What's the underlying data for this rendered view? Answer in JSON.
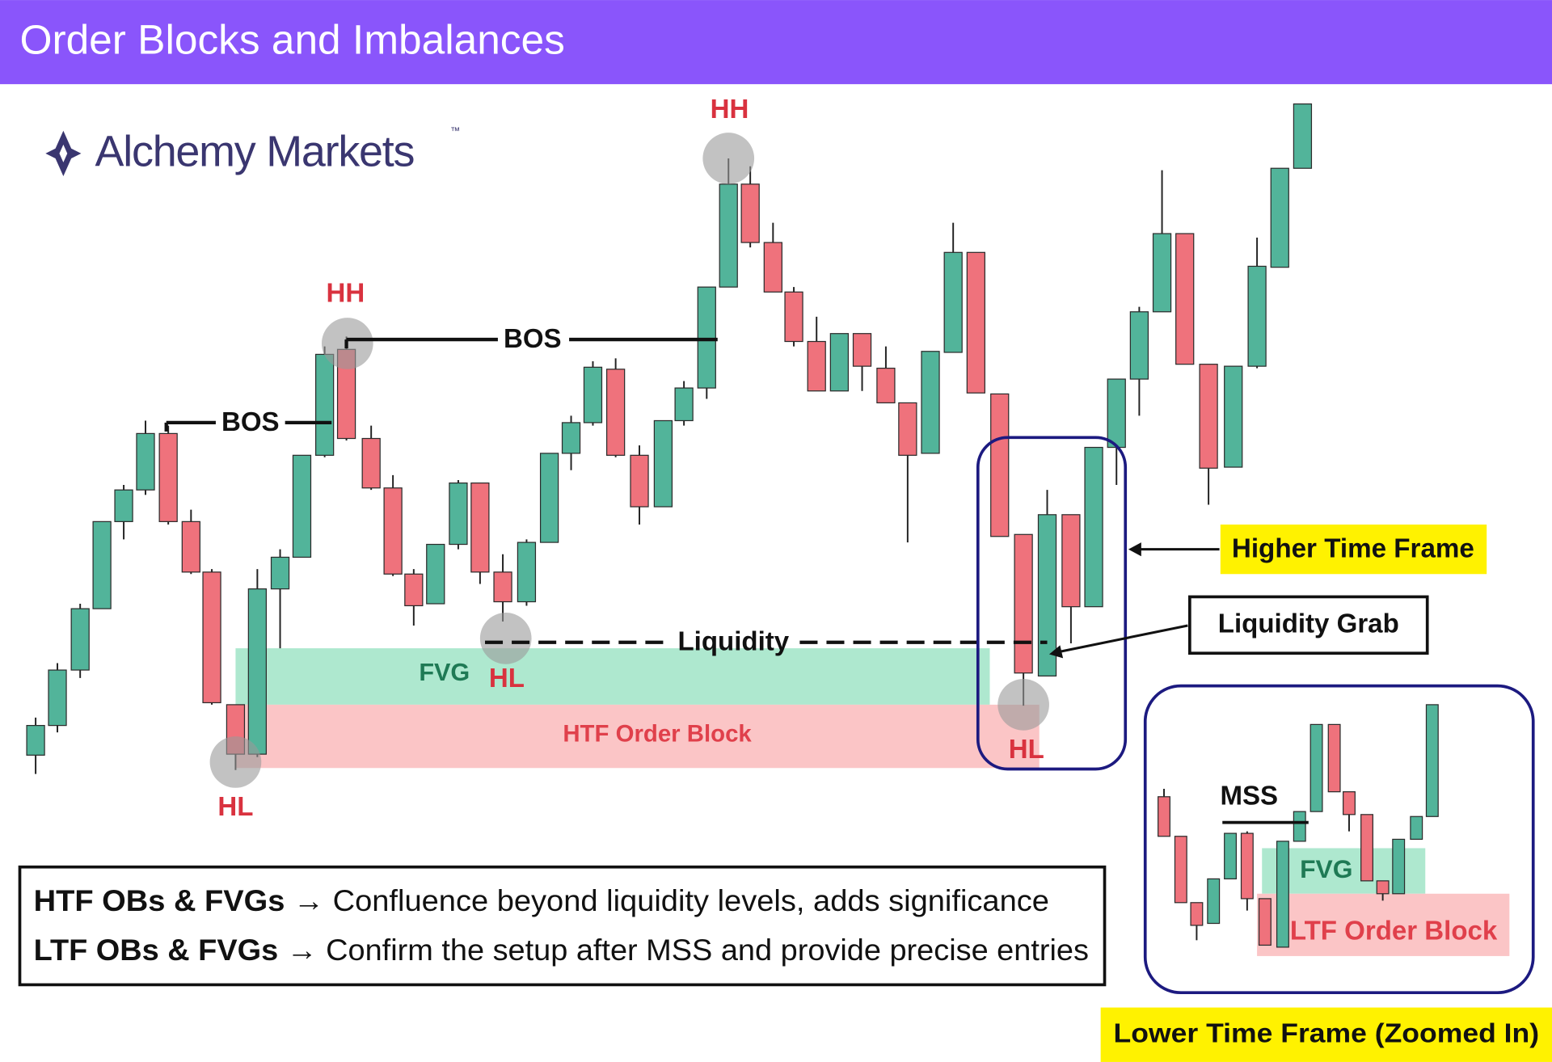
{
  "header": {
    "title": "Order Blocks and Imbalances"
  },
  "logo": {
    "name": "Alchemy Markets",
    "trademark": "™"
  },
  "htf_chart": {
    "labels": {
      "hh": [
        "HH",
        "HH"
      ],
      "hl": [
        "HL",
        "HL",
        "HL"
      ],
      "bos": [
        "BOS",
        "BOS"
      ],
      "liquidity": "Liquidity",
      "fvg": "FVG",
      "order_block": "HTF Order Block",
      "higher_time_frame": "Higher Time Frame",
      "liquidity_grab": "Liquidity Grab"
    }
  },
  "ltf_chart": {
    "labels": {
      "mss": "MSS",
      "fvg": "FVG",
      "order_block": "LTF Order Block",
      "lower_time_frame": "Lower Time Frame (Zoomed In)"
    }
  },
  "notes": [
    {
      "term": "HTF OBs & FVGs",
      "text": "→ Confluence beyond liquidity levels, adds significance"
    },
    {
      "term": "LTF OBs & FVGs",
      "text": "→ Confirm the setup after MSS and provide precise entries"
    }
  ]
}
